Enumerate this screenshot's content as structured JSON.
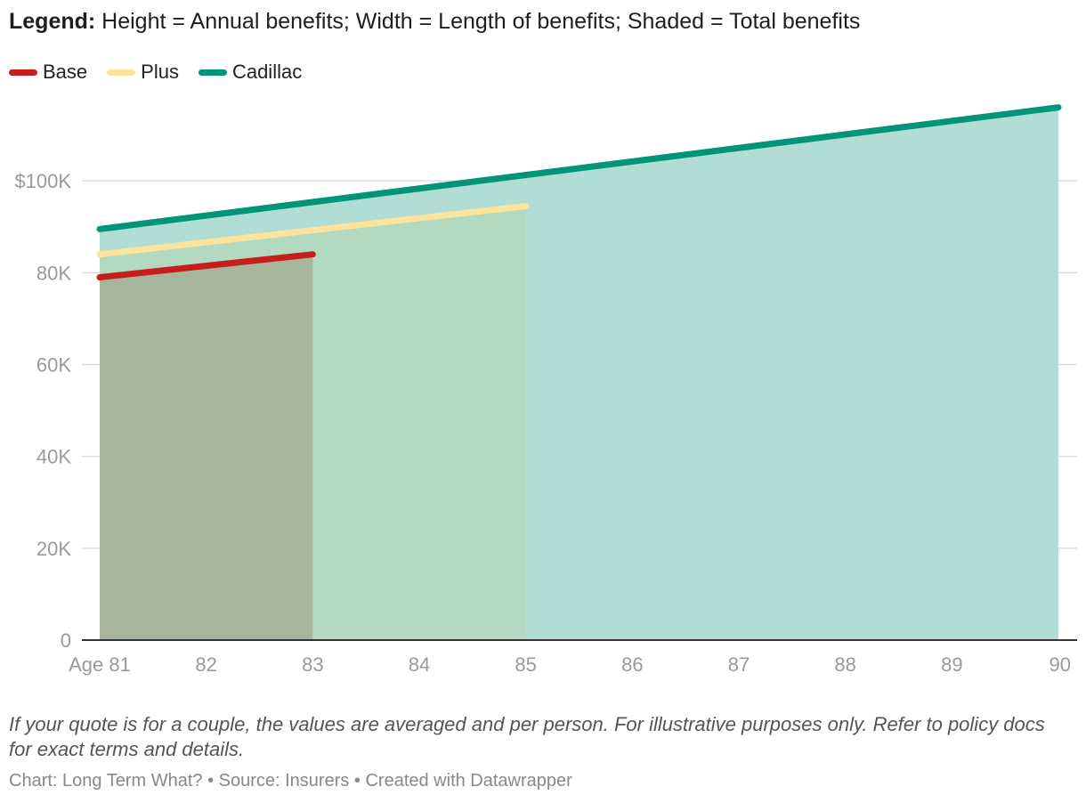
{
  "header": {
    "legend_label": "Legend:",
    "legend_text": " Height = Annual benefits; Width = Length of benefits; Shaded = Total benefits"
  },
  "chart_data": {
    "type": "area",
    "x_prefix_first": "Age ",
    "x_ticks": [
      81,
      82,
      83,
      84,
      85,
      86,
      87,
      88,
      89,
      90
    ],
    "y_ticks": [
      0,
      20000,
      40000,
      60000,
      80000,
      100000
    ],
    "y_tick_labels": [
      "0",
      "20K",
      "40K",
      "60K",
      "80K",
      "$100K"
    ],
    "xlim": [
      81,
      90
    ],
    "ylim": [
      0,
      120000
    ],
    "grid": true,
    "series": [
      {
        "name": "Cadillac",
        "color": "#00957a",
        "fill": "#b2ddd5",
        "x": [
          81,
          90
        ],
        "y": [
          89500,
          116000
        ]
      },
      {
        "name": "Plus",
        "color": "#fde49c",
        "fill": "#b3d9c0",
        "x": [
          81,
          85
        ],
        "y": [
          84000,
          94500
        ]
      },
      {
        "name": "Base",
        "color": "#c71e1d",
        "fill": "#a8b59d",
        "x": [
          81,
          83
        ],
        "y": [
          79000,
          84000
        ]
      }
    ]
  },
  "footer": {
    "note": "If your quote is for a couple, the values are averaged and per person. For illustrative purposes only. Refer to policy docs for exact terms and details.",
    "credit": "Chart: Long Term What? • Source: Insurers • Created with Datawrapper"
  }
}
